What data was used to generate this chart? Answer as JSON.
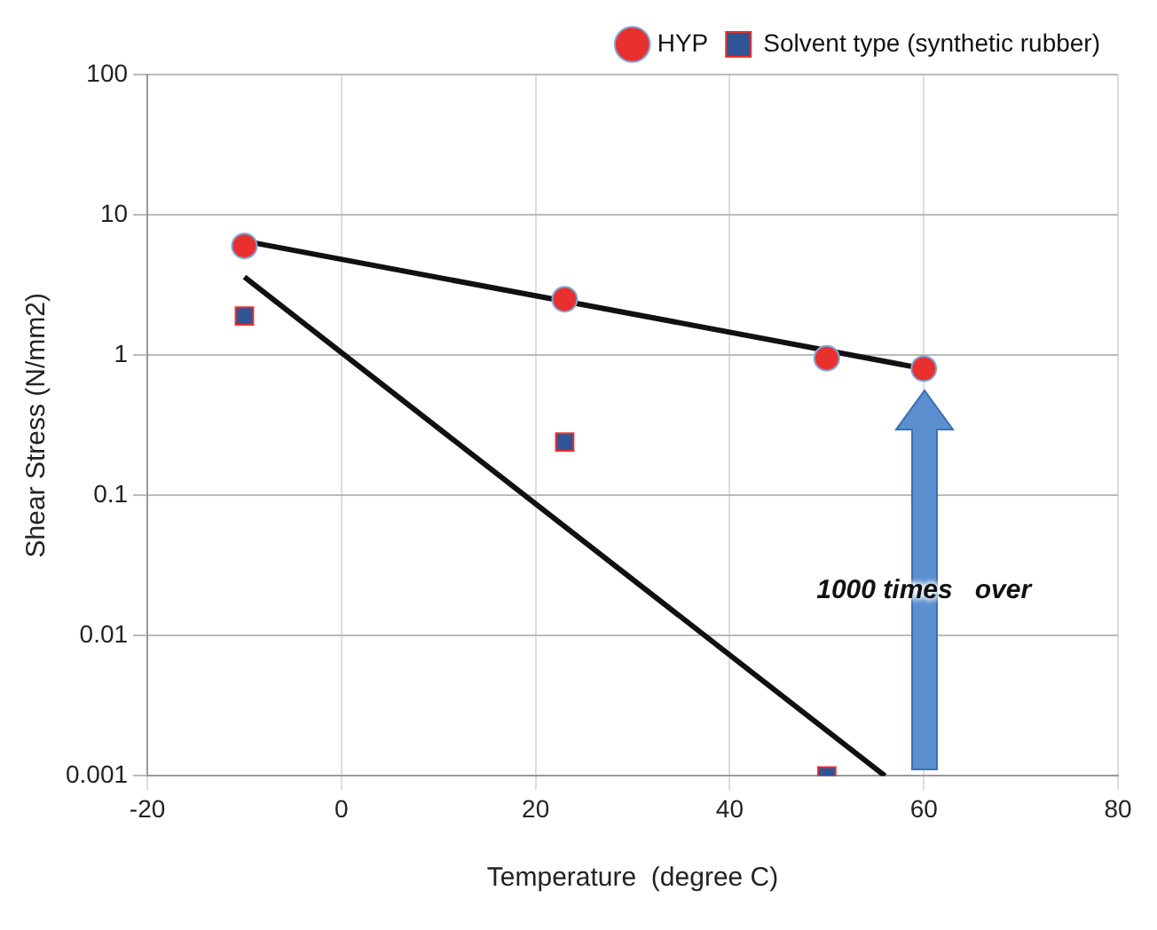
{
  "chart_data": {
    "type": "scatter",
    "xlabel": "Temperature  (degree C)",
    "ylabel": "Shear Stress (N/mm2)",
    "xlim": [
      -20,
      80
    ],
    "xticks": [
      -20,
      0,
      20,
      40,
      60,
      80
    ],
    "ylim": [
      0.001,
      100
    ],
    "yticks": [
      0.001,
      0.01,
      0.1,
      1,
      10,
      100
    ],
    "log": "y",
    "grid": true,
    "legend": "top right",
    "series": [
      {
        "name": "HYP",
        "color": "#e8312e",
        "marker": "circle",
        "x": [
          -10,
          23,
          50,
          60
        ],
        "values": [
          6,
          2.5,
          0.95,
          0.8
        ]
      },
      {
        "name": "Solvent type (synthetic rubber)",
        "color": "#2f5597",
        "marker": "square",
        "x": [
          -10,
          23,
          50
        ],
        "values": [
          1.9,
          0.24,
          0.001
        ]
      },
      {
        "type": "line",
        "color": "#111111",
        "marker": "none",
        "x": [
          -10,
          60
        ],
        "values": [
          6.5,
          0.8
        ]
      },
      {
        "type": "line",
        "color": "#111111",
        "marker": "none",
        "x": [
          -10,
          56
        ],
        "values": [
          3.6,
          0.001
        ]
      }
    ],
    "annotations": [
      "1000 times   over"
    ]
  }
}
